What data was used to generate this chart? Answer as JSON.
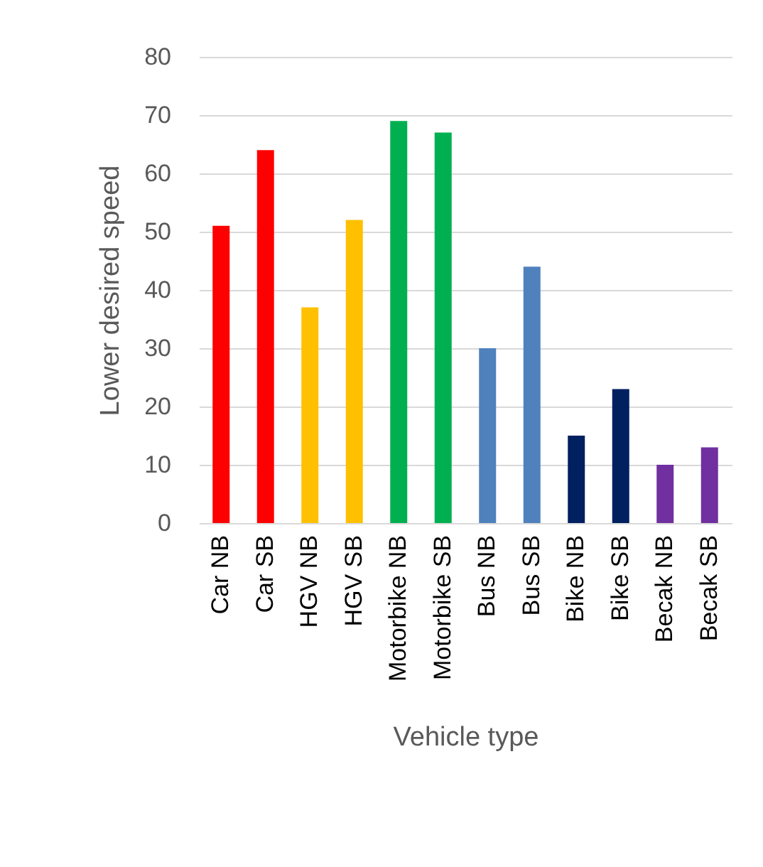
{
  "chart_data": {
    "type": "bar",
    "xlabel": "Vehicle type",
    "ylabel": "Lower desired speed",
    "categories": [
      "Car NB",
      "Car SB",
      "HGV NB",
      "HGV SB",
      "Motorbike NB",
      "Motorbike SB",
      "Bus NB",
      "Bus SB",
      "Bike NB",
      "Bike SB",
      "Becak NB",
      "Becak SB"
    ],
    "values": [
      51,
      64,
      37,
      52,
      69,
      67,
      30,
      44,
      15,
      23,
      10,
      13
    ],
    "colors": [
      "#ff0000",
      "#ff0000",
      "#ffc000",
      "#ffc000",
      "#00b050",
      "#00b050",
      "#4f81bd",
      "#4f81bd",
      "#002060",
      "#002060",
      "#7030a0",
      "#7030a0"
    ],
    "ylim": [
      0,
      80
    ],
    "yticks": [
      0,
      10,
      20,
      30,
      40,
      50,
      60,
      70,
      80
    ],
    "grid": "y"
  }
}
